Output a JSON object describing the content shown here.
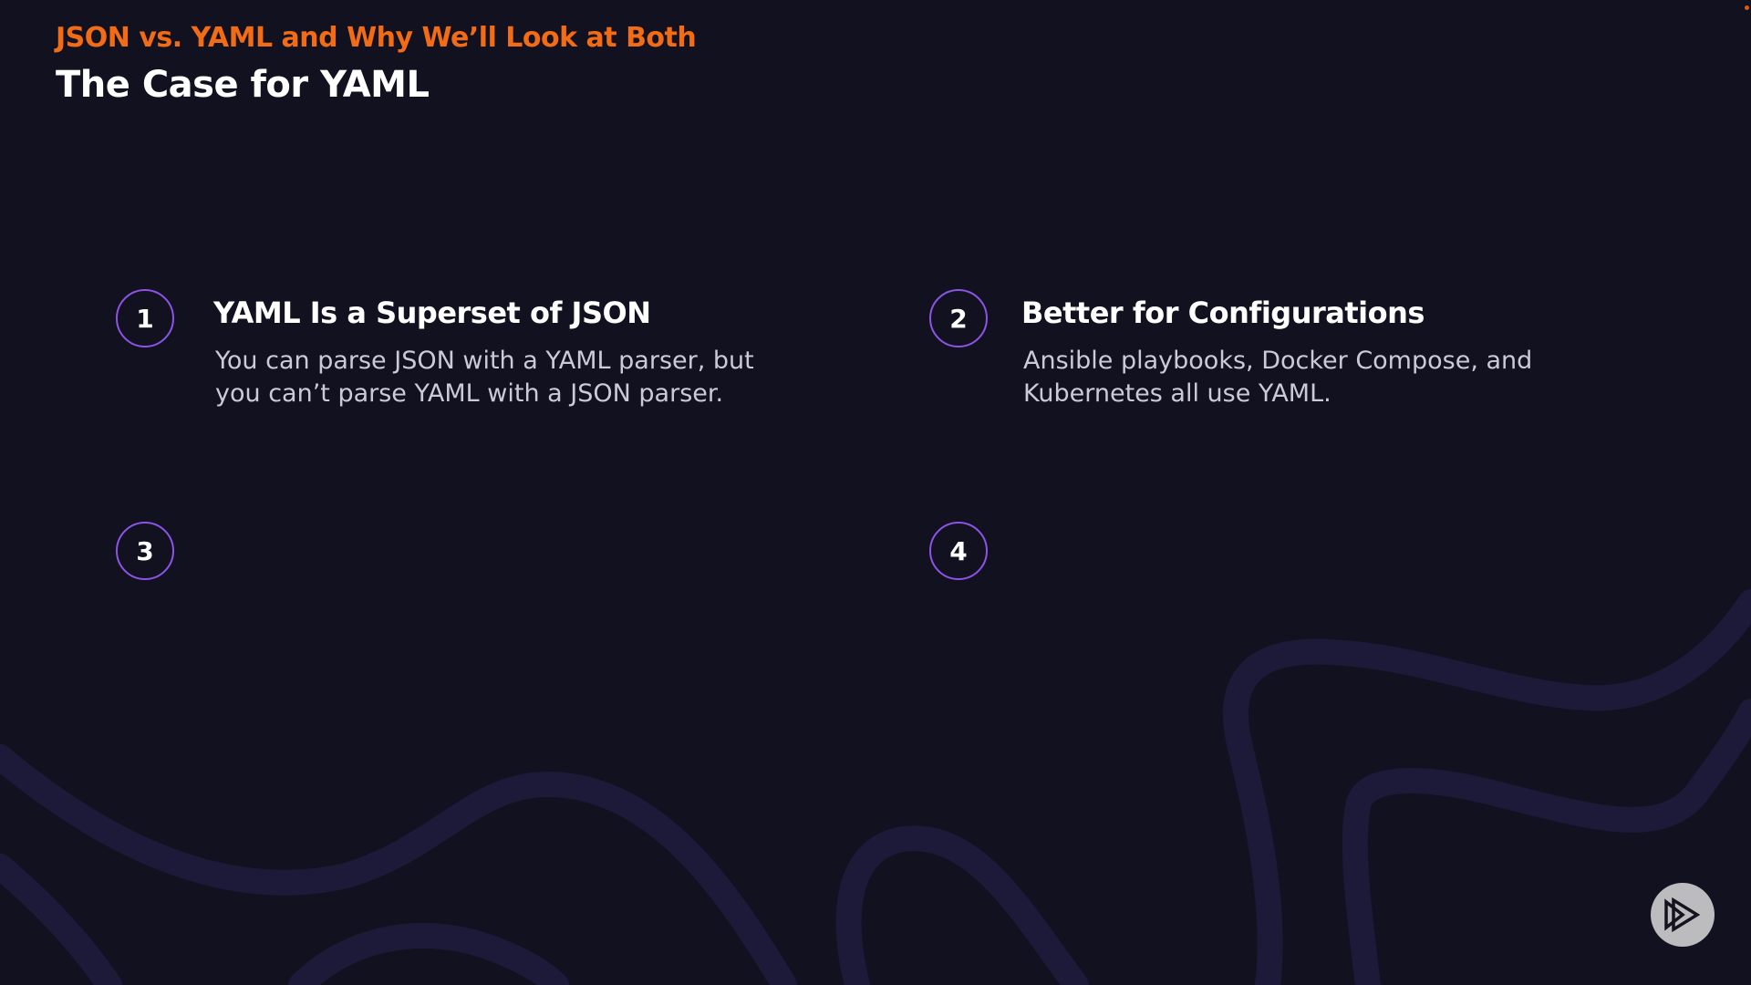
{
  "slide": {
    "eyebrow": "JSON vs. YAML and Why We’ll Look at Both",
    "title": "The Case for YAML",
    "points": [
      {
        "number": "1",
        "heading": "YAML Is a Superset of JSON",
        "body": "You can parse JSON with a YAML parser, but you can’t parse YAML with a JSON parser."
      },
      {
        "number": "2",
        "heading": "Better for Configurations",
        "body": "Ansible playbooks, Docker Compose, and Kubernetes all use YAML."
      },
      {
        "number": "3"
      },
      {
        "number": "4"
      }
    ]
  },
  "colors": {
    "background": "#121120",
    "accent": "#f26b15",
    "circle": "#8c54e6"
  },
  "logo_icon": "play-logo-icon"
}
